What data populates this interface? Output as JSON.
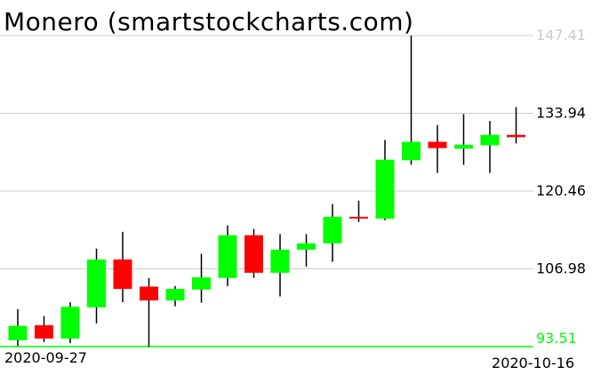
{
  "chart_data": {
    "type": "candlestick",
    "title": "Monero (smartstockcharts.com)",
    "x_start_label": "2020-09-27",
    "x_end_label": "2020-10-16",
    "ylim": [
      93.51,
      147.41
    ],
    "y_ticks": [
      "147.41",
      "133.94",
      "120.46",
      "106.98",
      "93.51"
    ],
    "grid": true,
    "colors": {
      "up": "#00ff00",
      "down": "#ff0000",
      "wick": "#000000",
      "grid": "#cccccc",
      "baseline": "#00ff00",
      "top_label": "#cccccc",
      "bottom_label": "#00ff00"
    },
    "candles": [
      {
        "o": 94.6,
        "h": 100.0,
        "l": 93.6,
        "c": 97.1
      },
      {
        "o": 97.2,
        "h": 98.8,
        "l": 94.3,
        "c": 94.9
      },
      {
        "o": 94.9,
        "h": 101.2,
        "l": 94.1,
        "c": 100.4
      },
      {
        "o": 100.3,
        "h": 110.5,
        "l": 97.5,
        "c": 108.6
      },
      {
        "o": 108.6,
        "h": 113.4,
        "l": 101.2,
        "c": 103.5
      },
      {
        "o": 103.9,
        "h": 105.4,
        "l": 93.5,
        "c": 101.5
      },
      {
        "o": 101.5,
        "h": 104.0,
        "l": 100.5,
        "c": 103.5
      },
      {
        "o": 103.4,
        "h": 109.6,
        "l": 101.1,
        "c": 105.5
      },
      {
        "o": 105.4,
        "h": 114.5,
        "l": 104.0,
        "c": 112.8
      },
      {
        "o": 112.8,
        "h": 113.9,
        "l": 105.4,
        "c": 106.3
      },
      {
        "o": 106.3,
        "h": 113.0,
        "l": 102.2,
        "c": 110.3
      },
      {
        "o": 110.3,
        "h": 113.0,
        "l": 107.4,
        "c": 111.4
      },
      {
        "o": 111.4,
        "h": 118.2,
        "l": 108.2,
        "c": 116.0
      },
      {
        "o": 116.0,
        "h": 118.8,
        "l": 115.1,
        "c": 115.8
      },
      {
        "o": 115.7,
        "h": 129.3,
        "l": 115.4,
        "c": 125.9
      },
      {
        "o": 125.8,
        "h": 147.41,
        "l": 125.0,
        "c": 129.0
      },
      {
        "o": 129.0,
        "h": 131.9,
        "l": 123.6,
        "c": 127.9
      },
      {
        "o": 127.8,
        "h": 133.8,
        "l": 125.0,
        "c": 128.5
      },
      {
        "o": 128.4,
        "h": 132.6,
        "l": 123.6,
        "c": 130.2
      },
      {
        "o": 130.2,
        "h": 135.0,
        "l": 128.7,
        "c": 129.8
      }
    ]
  }
}
